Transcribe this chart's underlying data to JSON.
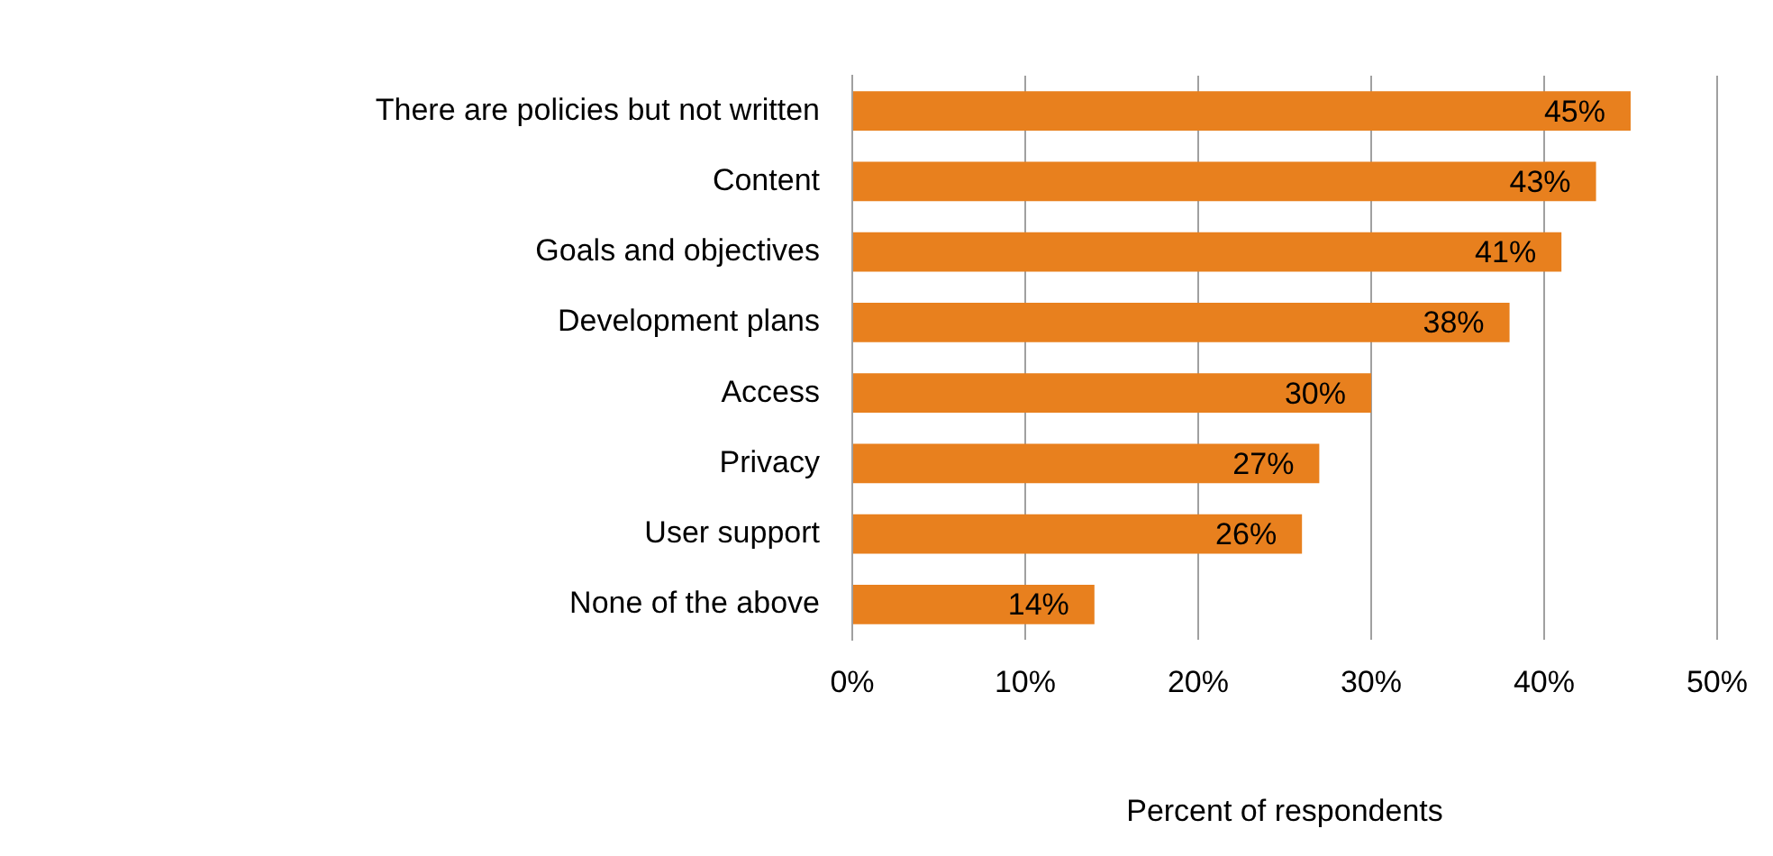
{
  "chart_data": {
    "type": "bar",
    "orientation": "horizontal",
    "categories": [
      "There are policies but not written",
      "Content",
      "Goals and objectives",
      "Development plans",
      "Access",
      "Privacy",
      "User support",
      "None of the above"
    ],
    "values": [
      45,
      43,
      41,
      38,
      30,
      27,
      26,
      14
    ],
    "value_labels": [
      "45%",
      "43%",
      "41%",
      "38%",
      "30%",
      "27%",
      "26%",
      "14%"
    ],
    "color": "#e8801e",
    "xlabel": "Percent of respondents",
    "xlim": [
      0,
      50
    ],
    "xticks": [
      {
        "value": 0,
        "label": "0%"
      },
      {
        "value": 10,
        "label": "10%"
      },
      {
        "value": 20,
        "label": "20%"
      },
      {
        "value": 30,
        "label": "30%"
      },
      {
        "value": 40,
        "label": "40%"
      },
      {
        "value": 50,
        "label": "50%"
      }
    ],
    "grid": "x",
    "legend": false
  }
}
